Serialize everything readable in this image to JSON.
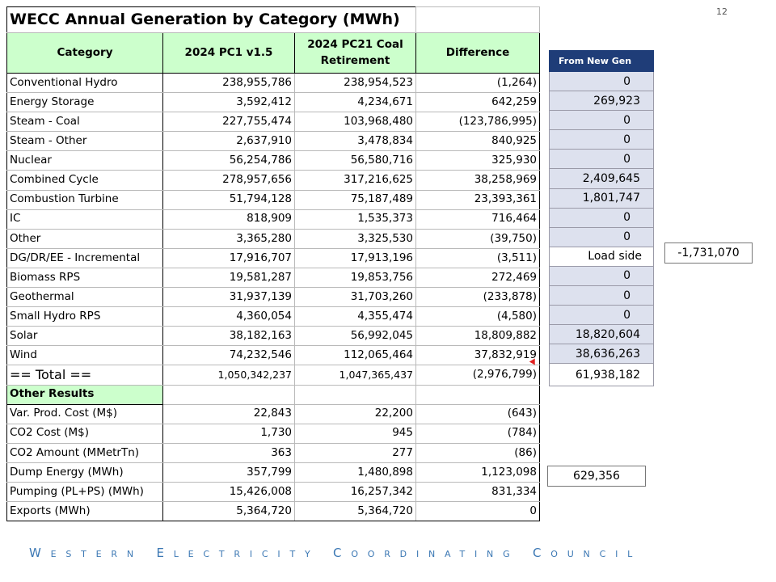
{
  "page_number": "12",
  "title": "WECC Annual Generation by Category (MWh)",
  "columns": [
    "Category",
    "2024 PC1 v1.5",
    "2024 PC21 Coal Retirement",
    "Difference"
  ],
  "rows": [
    [
      "Conventional Hydro",
      "238,955,786",
      "238,954,523",
      "(1,264)"
    ],
    [
      "Energy Storage",
      "3,592,412",
      "4,234,671",
      "642,259"
    ],
    [
      "Steam - Coal",
      "227,755,474",
      "103,968,480",
      "(123,786,995)"
    ],
    [
      "Steam - Other",
      "2,637,910",
      "3,478,834",
      "840,925"
    ],
    [
      "Nuclear",
      "56,254,786",
      "56,580,716",
      "325,930"
    ],
    [
      "Combined Cycle",
      "278,957,656",
      "317,216,625",
      "38,258,969"
    ],
    [
      "Combustion Turbine",
      "51,794,128",
      "75,187,489",
      "23,393,361"
    ],
    [
      "IC",
      "818,909",
      "1,535,373",
      "716,464"
    ],
    [
      "Other",
      "3,365,280",
      "3,325,530",
      "(39,750)"
    ],
    [
      "DG/DR/EE - Incremental",
      "17,916,707",
      "17,913,196",
      "(3,511)"
    ],
    [
      "Biomass RPS",
      "19,581,287",
      "19,853,756",
      "272,469"
    ],
    [
      "Geothermal",
      "31,937,139",
      "31,703,260",
      "(233,878)"
    ],
    [
      "Small Hydro RPS",
      "4,360,054",
      "4,355,474",
      "(4,580)"
    ],
    [
      "Solar",
      "38,182,163",
      "56,992,045",
      "18,809,882"
    ],
    [
      "Wind",
      "74,232,546",
      "112,065,464",
      "37,832,919"
    ]
  ],
  "total": {
    "label": "== Total ==",
    "v1": "1,050,342,237",
    "v2": "1,047,365,437",
    "diff": "(2,976,799)"
  },
  "other_results_label": "Other Results",
  "other_rows": [
    [
      "Var. Prod. Cost (M$)",
      "22,843",
      "22,200",
      "(643)"
    ],
    [
      "CO2 Cost (M$)",
      "1,730",
      "945",
      "(784)"
    ],
    [
      "CO2 Amount (MMetrTn)",
      "363",
      "277",
      "(86)"
    ],
    [
      "Dump Energy (MWh)",
      "357,799",
      "1,480,898",
      "1,123,098"
    ],
    [
      "Pumping (PL+PS) (MWh)",
      "15,426,008",
      "16,257,342",
      "831,334"
    ],
    [
      "Exports (MWh)",
      "5,364,720",
      "5,364,720",
      "0"
    ]
  ],
  "side": {
    "header": "From New Gen",
    "values": [
      "0",
      "269,923",
      "0",
      "0",
      "0",
      "2,409,645",
      "1,801,747",
      "0",
      "0",
      "Load side",
      "0",
      "0",
      "0",
      "18,820,604",
      "38,636,263"
    ],
    "total": "61,938,182"
  },
  "load_side_value": "-1,731,070",
  "dump_side_value": "629,356",
  "footer": "Western Electricity Coordinating Council"
}
